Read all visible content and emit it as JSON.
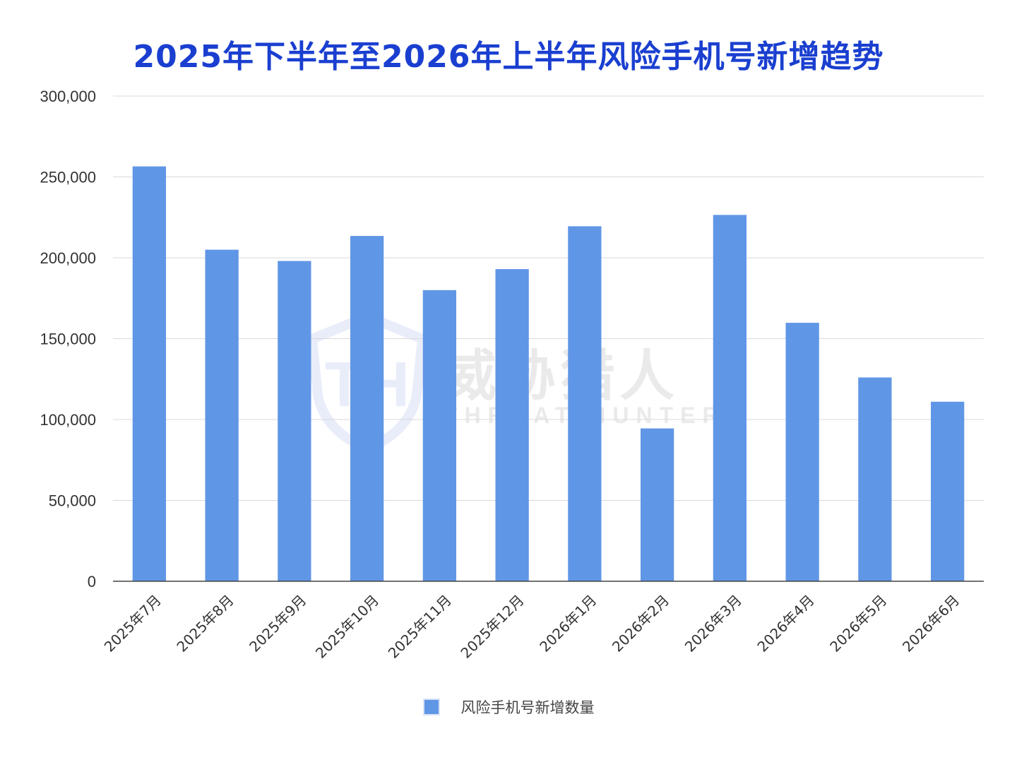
{
  "chart_data": {
    "type": "bar",
    "title": "2025年下半年至2026年上半年风险手机号新增趋势",
    "categories": [
      "2025年7月",
      "2025年8月",
      "2025年9月",
      "2025年10月",
      "2025年11月",
      "2025年12月",
      "2026年1月",
      "2026年2月",
      "2026年3月",
      "2026年4月",
      "2026年5月",
      "2026年6月"
    ],
    "series": [
      {
        "name": "风险手机号新增数量",
        "color": "#6096e6",
        "values": [
          256500,
          205000,
          198000,
          213500,
          180000,
          193000,
          219500,
          94500,
          226500,
          159800,
          126000,
          111000
        ]
      }
    ],
    "ylim": [
      0,
      300000
    ],
    "yticks": [
      0,
      50000,
      100000,
      150000,
      200000,
      250000,
      300000
    ],
    "ytick_labels": [
      "0",
      "50,000",
      "100,000",
      "150,000",
      "200,000",
      "250,000",
      "300,000"
    ],
    "xlabel": "",
    "ylabel": "",
    "grid": true,
    "legend_position": "bottom"
  },
  "watermark": {
    "cn": "威胁猎人",
    "en": "THREAT HUNTER",
    "icon": "shield-th-logo-icon"
  }
}
